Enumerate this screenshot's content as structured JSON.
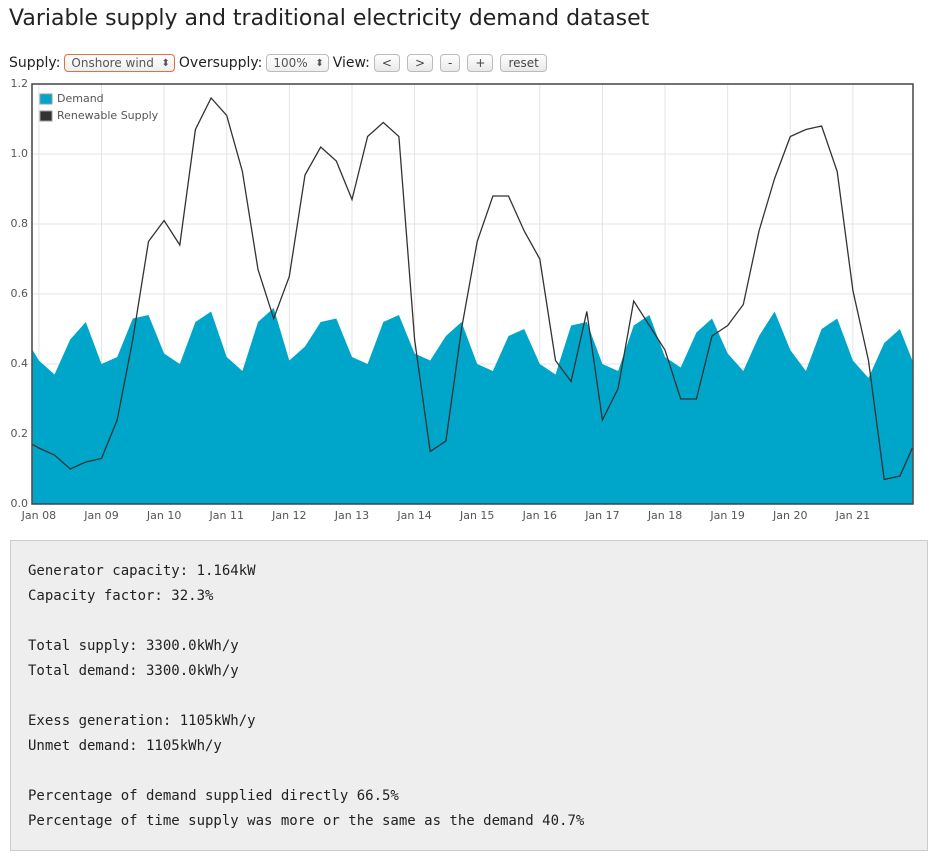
{
  "title": "Variable supply and traditional electricity demand dataset",
  "controls": {
    "supply_label": "Supply:",
    "supply_value": "Onshore wind",
    "oversupply_label": "Oversupply:",
    "oversupply_value": "100%",
    "view_label": "View:",
    "buttons": [
      "<",
      ">",
      "-",
      "+",
      "reset"
    ]
  },
  "chart_data": {
    "type": "area-line",
    "legend": "upper left",
    "grid": true,
    "x": [
      -0.1,
      0,
      0.25,
      0.5,
      0.75,
      1,
      1.25,
      1.5,
      1.75,
      2,
      2.25,
      2.5,
      2.75,
      3,
      3.25,
      3.5,
      3.75,
      4,
      4.25,
      4.5,
      4.75,
      5,
      5.25,
      5.5,
      5.75,
      6,
      6.25,
      6.5,
      6.75,
      7,
      7.25,
      7.5,
      7.75,
      8,
      8.25,
      8.5,
      8.75,
      9,
      9.25,
      9.5,
      9.75,
      10,
      10.25,
      10.5,
      10.75,
      11,
      11.25,
      11.5,
      11.75,
      12,
      12.25,
      12.5,
      12.75,
      13,
      13.25,
      13.5,
      13.75,
      13.95
    ],
    "xlim": [
      -0.11,
      13.96
    ],
    "xticks": [
      {
        "value": 0,
        "label": "Jan 08"
      },
      {
        "value": 1,
        "label": "Jan 09"
      },
      {
        "value": 2,
        "label": "Jan 10"
      },
      {
        "value": 3,
        "label": "Jan 11"
      },
      {
        "value": 4,
        "label": "Jan 12"
      },
      {
        "value": 5,
        "label": "Jan 13"
      },
      {
        "value": 6,
        "label": "Jan 14"
      },
      {
        "value": 7,
        "label": "Jan 15"
      },
      {
        "value": 8,
        "label": "Jan 16"
      },
      {
        "value": 9,
        "label": "Jan 17"
      },
      {
        "value": 10,
        "label": "Jan 18"
      },
      {
        "value": 11,
        "label": "Jan 19"
      },
      {
        "value": 12,
        "label": "Jan 20"
      },
      {
        "value": 13,
        "label": "Jan 21"
      }
    ],
    "ylim": [
      0,
      1.2
    ],
    "yticks": [
      {
        "value": 0,
        "label": "0.0"
      },
      0.2,
      0.4,
      0.6,
      0.8,
      {
        "value": 1,
        "label": "1.0"
      },
      1.2
    ],
    "series": [
      {
        "name": "Demand",
        "color": "#00a6ca",
        "style": "area",
        "values": [
          0.44,
          0.41,
          0.37,
          0.47,
          0.52,
          0.4,
          0.42,
          0.53,
          0.54,
          0.43,
          0.4,
          0.52,
          0.55,
          0.42,
          0.38,
          0.52,
          0.56,
          0.41,
          0.45,
          0.52,
          0.53,
          0.42,
          0.4,
          0.52,
          0.54,
          0.43,
          0.41,
          0.48,
          0.52,
          0.4,
          0.38,
          0.48,
          0.5,
          0.4,
          0.37,
          0.51,
          0.52,
          0.4,
          0.38,
          0.51,
          0.54,
          0.42,
          0.39,
          0.49,
          0.53,
          0.43,
          0.38,
          0.48,
          0.55,
          0.44,
          0.38,
          0.5,
          0.53,
          0.41,
          0.36,
          0.46,
          0.5,
          0.41
        ]
      },
      {
        "name": "Renewable Supply",
        "color": "#333333",
        "style": "line",
        "values": [
          0.17,
          0.16,
          0.14,
          0.1,
          0.12,
          0.13,
          0.24,
          0.47,
          0.75,
          0.81,
          0.74,
          1.07,
          1.16,
          1.11,
          0.95,
          0.67,
          0.53,
          0.65,
          0.94,
          1.02,
          0.98,
          0.87,
          1.05,
          1.09,
          1.05,
          0.47,
          0.15,
          0.18,
          0.5,
          0.75,
          0.88,
          0.88,
          0.78,
          0.7,
          0.41,
          0.35,
          0.55,
          0.24,
          0.33,
          0.58,
          0.51,
          0.44,
          0.3,
          0.3,
          0.48,
          0.51,
          0.57,
          0.78,
          0.93,
          1.05,
          1.07,
          1.08,
          0.95,
          0.61,
          0.41,
          0.07,
          0.08,
          0.16
        ]
      }
    ]
  },
  "stats": [
    [
      "Generator capacity: 1.164kW",
      "Capacity factor: 32.3%"
    ],
    [
      "Total supply: 3300.0kWh/y",
      "Total demand: 3300.0kWh/y"
    ],
    [
      "Exess generation: 1105kWh/y",
      "Unmet demand: 1105kWh/y"
    ],
    [
      "Percentage of demand supplied directly 66.5%",
      "Percentage of time supply was more or the same as the demand 40.7%"
    ]
  ]
}
